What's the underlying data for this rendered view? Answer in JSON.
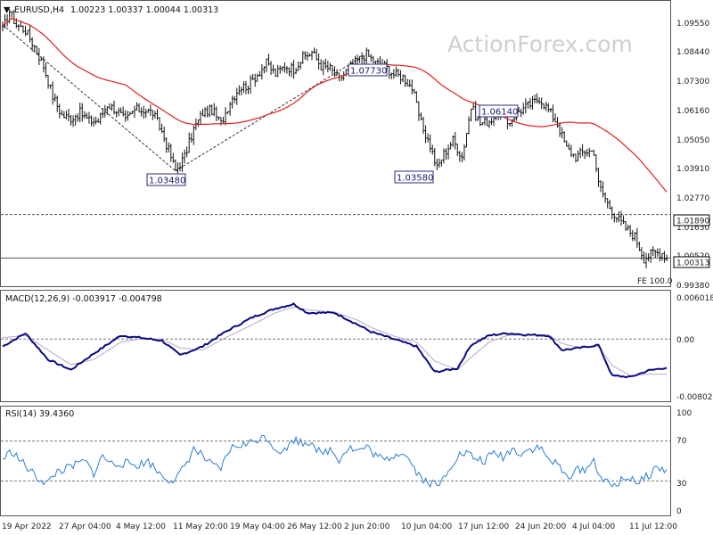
{
  "header": {
    "symbol": "EURUSD,H4",
    "ohlc": "1.00223 1.00337 1.00044 1.00313",
    "watermark": "ActionForex.com"
  },
  "chart_data": [
    {
      "type": "candlestick",
      "title": "EURUSD,H4",
      "ylim": [
        0.9938,
        1.0957
      ],
      "y_ticks": [
        "1.09550",
        "1.08440",
        "1.07300",
        "1.06160",
        "1.05050",
        "1.03910",
        "1.02770",
        "1.01630",
        "1.00520",
        "0.99380"
      ],
      "x_labels": [
        "19 Apr 2022",
        "27 Apr 04:00",
        "4 May 12:00",
        "11 May 20:00",
        "19 May 04:00",
        "26 May 12:00",
        "2 Jun 20:00",
        "10 Jun 04:00",
        "17 Jun 12:00",
        "24 Jun 20:00",
        "4 Jul 04:00",
        "11 Jul 12:00"
      ],
      "price_anchors": [
        [
          0,
          1.086
        ],
        [
          3,
          1.093
        ],
        [
          6,
          1.088
        ],
        [
          10,
          1.086
        ],
        [
          14,
          1.08
        ],
        [
          18,
          1.073
        ],
        [
          22,
          1.062
        ],
        [
          26,
          1.055
        ],
        [
          30,
          1.054
        ],
        [
          34,
          1.056
        ],
        [
          38,
          1.053
        ],
        [
          42,
          1.053
        ],
        [
          46,
          1.059
        ],
        [
          50,
          1.057
        ],
        [
          54,
          1.053
        ],
        [
          58,
          1.057
        ],
        [
          62,
          1.057
        ],
        [
          66,
          1.056
        ],
        [
          70,
          1.049
        ],
        [
          74,
          1.04
        ],
        [
          76,
          1.0348
        ],
        [
          80,
          1.04
        ],
        [
          84,
          1.05
        ],
        [
          88,
          1.056
        ],
        [
          92,
          1.057
        ],
        [
          96,
          1.052
        ],
        [
          100,
          1.06
        ],
        [
          104,
          1.065
        ],
        [
          108,
          1.066
        ],
        [
          112,
          1.07
        ],
        [
          116,
          1.074
        ],
        [
          120,
          1.07
        ],
        [
          124,
          1.073
        ],
        [
          128,
          1.072
        ],
        [
          132,
          1.076
        ],
        [
          136,
          1.078
        ],
        [
          140,
          1.073
        ],
        [
          144,
          1.072
        ],
        [
          148,
          1.068
        ],
        [
          152,
          1.072
        ],
        [
          156,
          1.075
        ],
        [
          160,
          1.0773
        ],
        [
          164,
          1.074
        ],
        [
          168,
          1.073
        ],
        [
          172,
          1.07
        ],
        [
          176,
          1.069
        ],
        [
          180,
          1.065
        ],
        [
          184,
          1.052
        ],
        [
          188,
          1.044
        ],
        [
          191,
          1.0358
        ],
        [
          194,
          1.041
        ],
        [
          198,
          1.046
        ],
        [
          202,
          1.04
        ],
        [
          206,
          1.058
        ],
        [
          210,
          1.052
        ],
        [
          214,
          1.053
        ],
        [
          218,
          1.056
        ],
        [
          222,
          1.052
        ],
        [
          226,
          1.056
        ],
        [
          230,
          1.058
        ],
        [
          234,
          1.06
        ],
        [
          236,
          1.0614
        ],
        [
          240,
          1.057
        ],
        [
          244,
          1.052
        ],
        [
          248,
          1.043
        ],
        [
          252,
          1.04
        ],
        [
          256,
          1.042
        ],
        [
          260,
          1.042
        ],
        [
          262,
          1.03
        ],
        [
          266,
          1.023
        ],
        [
          270,
          1.018
        ],
        [
          274,
          1.014
        ],
        [
          278,
          1.011
        ],
        [
          282,
          1.003
        ],
        [
          286,
          1.005
        ],
        [
          290,
          1.005
        ],
        [
          292,
          1.0031
        ]
      ],
      "moving_average": {
        "color": "#e02020"
      },
      "horizontal_lines": [
        {
          "price": 1.0189,
          "label": "1.01890",
          "style": "dashed"
        },
        {
          "price": 1.0031,
          "label": "1.00313",
          "style": "solid"
        }
      ],
      "annotations": [
        {
          "label": "1.03480",
          "price": 1.0348
        },
        {
          "label": "1.07730",
          "price": 1.0773
        },
        {
          "label": "1.03580",
          "price": 1.0358
        },
        {
          "label": "1.06140",
          "price": 1.0614
        },
        {
          "label": "FE 100.0"
        }
      ],
      "trend_lines": [
        {
          "from": [
            0,
            1.088
          ],
          "to": [
            76,
            1.0348
          ],
          "style": "dashed"
        },
        {
          "from": [
            76,
            1.0348
          ],
          "to": [
            160,
            1.0773
          ],
          "style": "dashed"
        }
      ]
    },
    {
      "type": "line",
      "title": "MACD(12,26,9) -0.003917 -0.004798",
      "ylim": [
        -0.00802,
        0.006018
      ],
      "y_ticks": [
        "0.006018",
        "0.00",
        "-0.00802"
      ],
      "macd_anchors": [
        [
          0,
          -0.001
        ],
        [
          10,
          0.0008
        ],
        [
          20,
          -0.0028
        ],
        [
          30,
          -0.0042
        ],
        [
          40,
          -0.002
        ],
        [
          52,
          0.0005
        ],
        [
          60,
          0.0002
        ],
        [
          70,
          -0.0002
        ],
        [
          78,
          -0.0022
        ],
        [
          88,
          -0.001
        ],
        [
          98,
          0.001
        ],
        [
          110,
          0.003
        ],
        [
          120,
          0.0042
        ],
        [
          128,
          0.0048
        ],
        [
          134,
          0.0036
        ],
        [
          146,
          0.0036
        ],
        [
          156,
          0.002
        ],
        [
          162,
          0.001
        ],
        [
          172,
          0.0
        ],
        [
          182,
          -0.001
        ],
        [
          190,
          -0.0045
        ],
        [
          200,
          -0.004
        ],
        [
          206,
          -0.0008
        ],
        [
          214,
          0.0005
        ],
        [
          222,
          0.0008
        ],
        [
          230,
          0.0006
        ],
        [
          240,
          0.0005
        ],
        [
          246,
          -0.0015
        ],
        [
          254,
          -0.0012
        ],
        [
          262,
          -0.0008
        ],
        [
          268,
          -0.005
        ],
        [
          276,
          -0.0052
        ],
        [
          284,
          -0.0043
        ],
        [
          292,
          -0.0039
        ]
      ],
      "signal_anchors": [
        [
          0,
          0.0002
        ],
        [
          10,
          0.0005
        ],
        [
          20,
          -0.0015
        ],
        [
          30,
          -0.0035
        ],
        [
          40,
          -0.0028
        ],
        [
          52,
          -0.0004
        ],
        [
          60,
          0.0
        ],
        [
          70,
          0.0
        ],
        [
          78,
          -0.0012
        ],
        [
          88,
          -0.0015
        ],
        [
          98,
          0.0002
        ],
        [
          110,
          0.002
        ],
        [
          120,
          0.0036
        ],
        [
          128,
          0.0044
        ],
        [
          134,
          0.004
        ],
        [
          146,
          0.0037
        ],
        [
          156,
          0.0026
        ],
        [
          162,
          0.0016
        ],
        [
          172,
          0.0004
        ],
        [
          182,
          -0.0004
        ],
        [
          190,
          -0.003
        ],
        [
          200,
          -0.0042
        ],
        [
          206,
          -0.0025
        ],
        [
          214,
          -0.0004
        ],
        [
          222,
          0.0005
        ],
        [
          230,
          0.0006
        ],
        [
          240,
          0.0006
        ],
        [
          246,
          -0.0006
        ],
        [
          254,
          -0.0012
        ],
        [
          262,
          -0.001
        ],
        [
          268,
          -0.0036
        ],
        [
          276,
          -0.005
        ],
        [
          284,
          -0.0048
        ],
        [
          292,
          -0.0048
        ]
      ]
    },
    {
      "type": "line",
      "title": "RSI(14) 39.4360",
      "ylim": [
        0,
        100
      ],
      "y_ticks": [
        "100",
        "70",
        "30",
        "0"
      ],
      "rsi_anchors": [
        [
          0,
          52
        ],
        [
          4,
          60
        ],
        [
          8,
          50
        ],
        [
          12,
          40
        ],
        [
          16,
          32
        ],
        [
          20,
          28
        ],
        [
          24,
          40
        ],
        [
          28,
          42
        ],
        [
          32,
          46
        ],
        [
          36,
          50
        ],
        [
          40,
          38
        ],
        [
          44,
          55
        ],
        [
          48,
          47
        ],
        [
          52,
          48
        ],
        [
          56,
          47
        ],
        [
          60,
          46
        ],
        [
          64,
          50
        ],
        [
          68,
          40
        ],
        [
          72,
          33
        ],
        [
          76,
          30
        ],
        [
          80,
          45
        ],
        [
          84,
          62
        ],
        [
          88,
          55
        ],
        [
          92,
          45
        ],
        [
          96,
          42
        ],
        [
          100,
          62
        ],
        [
          104,
          66
        ],
        [
          108,
          67
        ],
        [
          112,
          72
        ],
        [
          116,
          74
        ],
        [
          120,
          62
        ],
        [
          124,
          60
        ],
        [
          128,
          72
        ],
        [
          132,
          68
        ],
        [
          136,
          70
        ],
        [
          140,
          56
        ],
        [
          144,
          62
        ],
        [
          148,
          52
        ],
        [
          152,
          64
        ],
        [
          156,
          60
        ],
        [
          160,
          64
        ],
        [
          164,
          56
        ],
        [
          168,
          50
        ],
        [
          172,
          56
        ],
        [
          176,
          60
        ],
        [
          180,
          47
        ],
        [
          184,
          33
        ],
        [
          188,
          28
        ],
        [
          192,
          25
        ],
        [
          196,
          42
        ],
        [
          200,
          55
        ],
        [
          204,
          58
        ],
        [
          208,
          52
        ],
        [
          212,
          50
        ],
        [
          216,
          58
        ],
        [
          220,
          54
        ],
        [
          224,
          62
        ],
        [
          228,
          58
        ],
        [
          232,
          62
        ],
        [
          236,
          64
        ],
        [
          240,
          52
        ],
        [
          244,
          46
        ],
        [
          248,
          34
        ],
        [
          252,
          40
        ],
        [
          256,
          42
        ],
        [
          260,
          50
        ],
        [
          264,
          30
        ],
        [
          268,
          25
        ],
        [
          272,
          30
        ],
        [
          276,
          34
        ],
        [
          280,
          28
        ],
        [
          284,
          36
        ],
        [
          288,
          44
        ],
        [
          292,
          39.4
        ]
      ],
      "levels": [
        70,
        30
      ]
    }
  ]
}
